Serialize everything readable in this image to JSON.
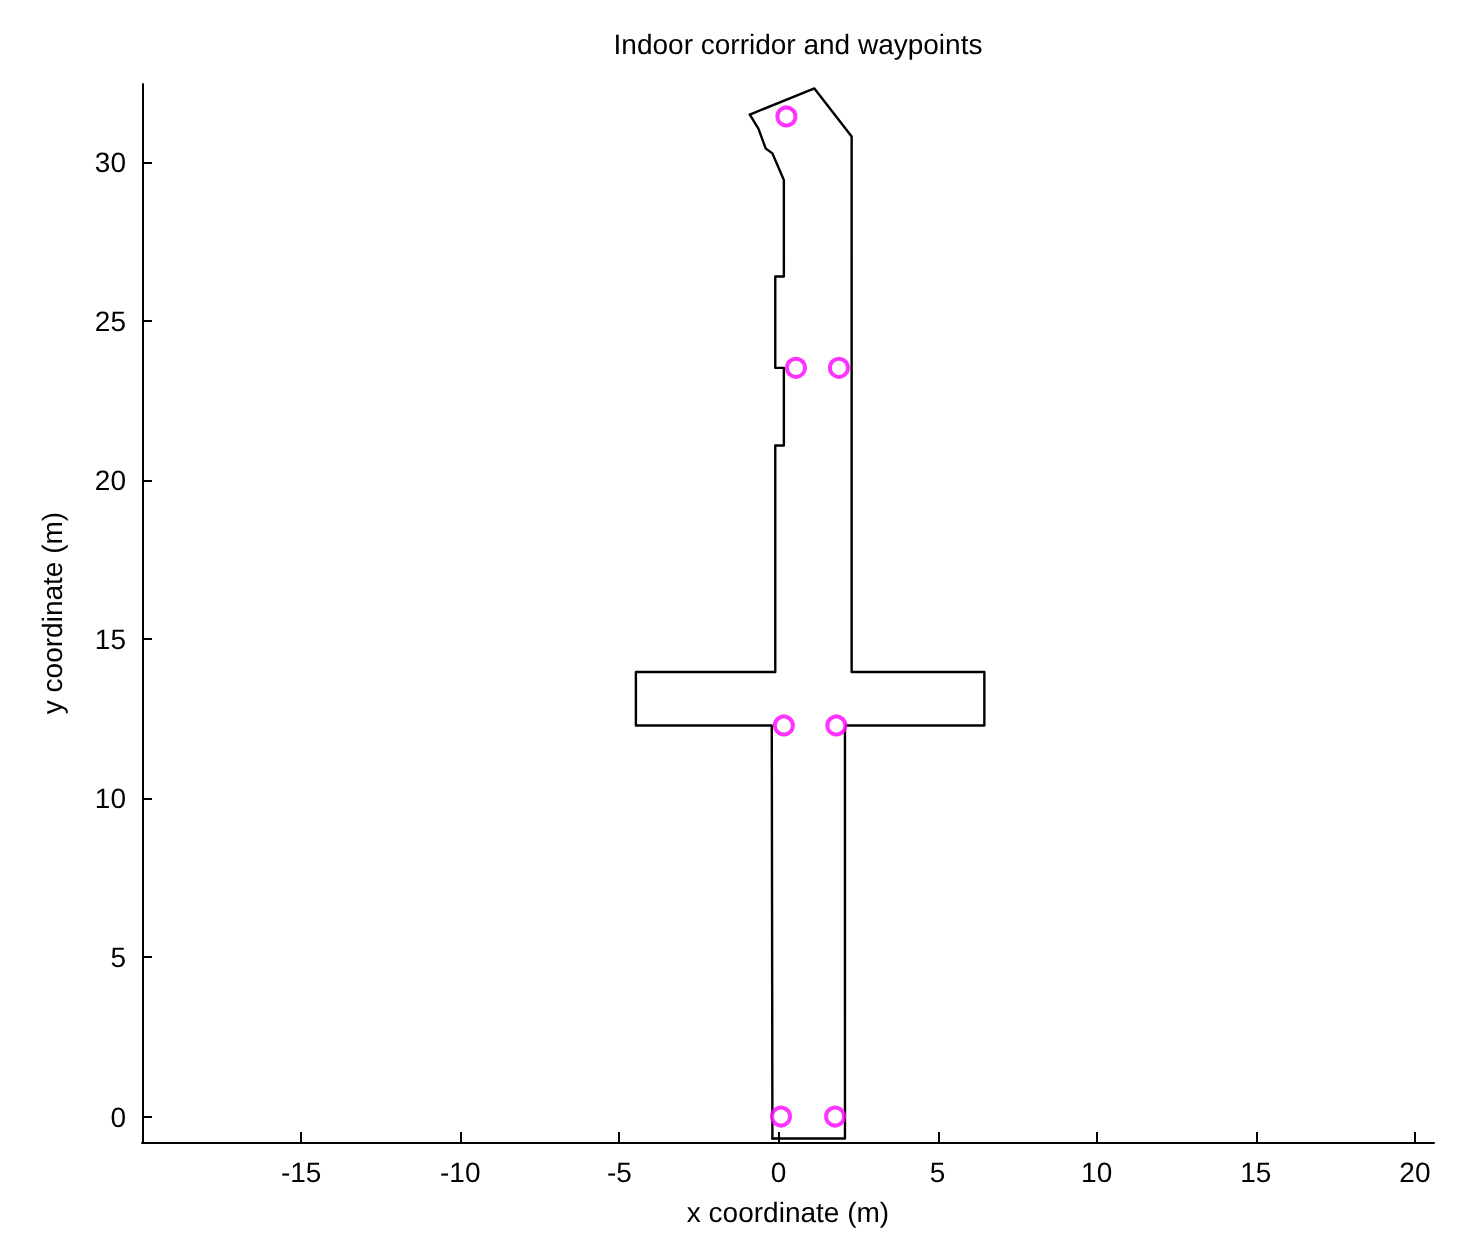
{
  "chart_data": {
    "type": "line",
    "title": "Indoor corridor and waypoints",
    "xlabel": "x coordinate (m)",
    "ylabel": "y coordinate (m)",
    "xlim": [
      -20,
      20.6
    ],
    "ylim": [
      -0.8,
      32.45
    ],
    "xticks": [
      -15,
      -10,
      -5,
      0,
      5,
      10,
      15,
      20
    ],
    "yticks": [
      0,
      5,
      10,
      15,
      20,
      25,
      30
    ],
    "grid": false,
    "series": [
      {
        "type": "line",
        "color": "#000000",
        "marker": "none",
        "line_style": "solid",
        "x": [
          -0.9,
          1.13,
          2.3,
          2.3,
          6.47,
          6.47,
          2.09,
          2.09,
          -0.19
        ],
        "values": [
          31.49,
          32.31,
          30.8,
          13.97,
          13.97,
          12.29,
          12.29,
          -0.69,
          -0.69
        ]
      },
      {
        "type": "line",
        "color": "#000000",
        "marker": "none",
        "line_style": "solid",
        "x": [
          -0.19,
          -0.21,
          -4.48,
          -4.48,
          -0.1,
          -0.1,
          0.17,
          0.17,
          -0.1,
          -0.1,
          0.17,
          0.17,
          -0.19,
          -0.4,
          -0.63,
          -0.9
        ],
        "values": [
          -0.69,
          12.29,
          12.29,
          13.97,
          13.97,
          21.09,
          21.09,
          23.53,
          23.53,
          26.4,
          26.4,
          29.43,
          30.27,
          30.42,
          31.05,
          31.49
        ]
      },
      {
        "type": "scatter",
        "color": "#ff00ff",
        "marker": "circle",
        "x": [
          0.25,
          0.55,
          1.9,
          0.17,
          1.82,
          0.08,
          1.78
        ],
        "values": [
          31.43,
          23.53,
          23.53,
          12.29,
          12.29,
          0,
          0
        ]
      }
    ]
  }
}
